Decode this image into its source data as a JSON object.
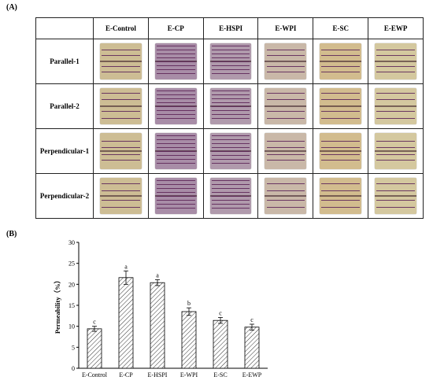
{
  "panel_a": {
    "label": "(A)",
    "columns": [
      "E-Control",
      "E-CP",
      "E-HSPI",
      "E-WPI",
      "E-SC",
      "E-EWP"
    ],
    "rows": [
      "Parallel-1",
      "Parallel-2",
      "Perpendicular-1",
      "Perpendicular-2"
    ],
    "specimen_colors": [
      "#cdbd94",
      "#a88da7",
      "#b09aac",
      "#c9b8a8",
      "#d2bc8e",
      "#d4c89f"
    ]
  },
  "panel_b": {
    "label": "(B)"
  },
  "chart_data": {
    "type": "bar",
    "categories": [
      "E-Control",
      "E-CP",
      "E-HSPI",
      "E-WPI",
      "E-SC",
      "E-EWP"
    ],
    "values": [
      9.4,
      21.6,
      20.4,
      13.5,
      11.4,
      9.8
    ],
    "errors": [
      0.6,
      1.6,
      0.7,
      0.9,
      0.7,
      0.7
    ],
    "significance": [
      "c",
      "a",
      "a",
      "b",
      "c",
      "c"
    ],
    "xlabel": "",
    "ylabel": "Permeability（%）",
    "ylim": [
      0,
      30
    ],
    "yticks": [
      0,
      5,
      10,
      15,
      20,
      25,
      30
    ],
    "bar_pattern": "diagonal-hatch",
    "grid": false
  }
}
